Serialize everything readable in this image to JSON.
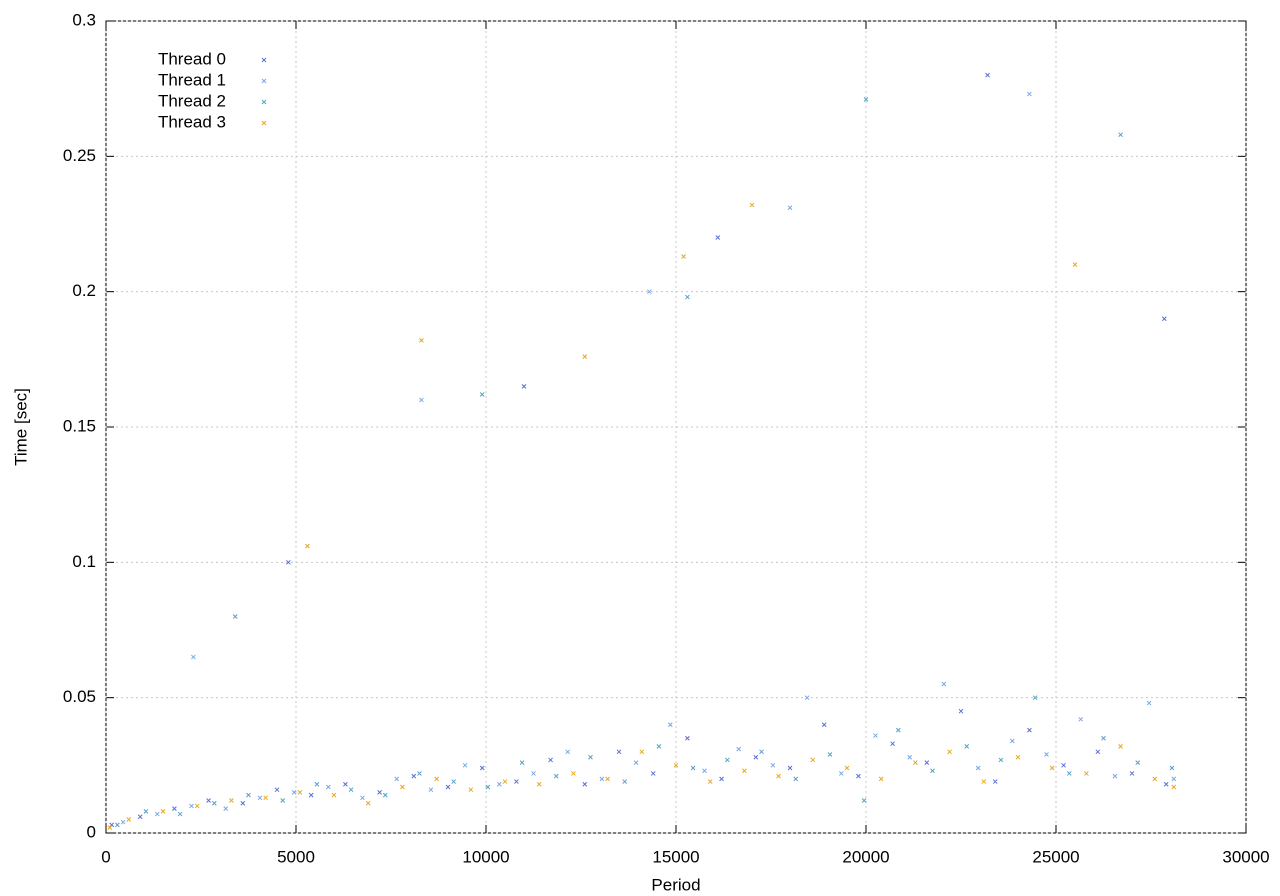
{
  "chart_data": {
    "type": "scatter",
    "xlabel": "Period",
    "ylabel": "Time [sec]",
    "xlim": [
      0,
      30000
    ],
    "xticks": [
      0,
      5000,
      10000,
      15000,
      20000,
      25000,
      30000
    ],
    "ylim": [
      0,
      0.3
    ],
    "yticks": [
      0,
      0.05,
      0.1,
      0.15,
      0.2,
      0.25,
      0.3
    ],
    "grid": true,
    "legend": "top-left",
    "series": [
      {
        "name": "Thread 0",
        "color": "#5a6fd6",
        "x": [
          150,
          900,
          1800,
          2700,
          3600,
          4500,
          5400,
          6300,
          7200,
          8100,
          9000,
          9900,
          10800,
          11700,
          12600,
          13500,
          14400,
          15300,
          16200,
          17100,
          18000,
          18900,
          19800,
          20700,
          21600,
          22500,
          23400,
          24300,
          25200,
          26100,
          27000,
          27900,
          4800,
          11000,
          16100,
          23200,
          27850
        ],
        "values": [
          0.003,
          0.006,
          0.009,
          0.012,
          0.011,
          0.016,
          0.014,
          0.018,
          0.015,
          0.021,
          0.017,
          0.024,
          0.019,
          0.027,
          0.018,
          0.03,
          0.022,
          0.035,
          0.02,
          0.028,
          0.024,
          0.04,
          0.021,
          0.033,
          0.026,
          0.045,
          0.019,
          0.038,
          0.025,
          0.03,
          0.022,
          0.018,
          0.1,
          0.165,
          0.22,
          0.28,
          0.19
        ]
      },
      {
        "name": "Thread 1",
        "color": "#7aa6e6",
        "x": [
          450,
          1350,
          2250,
          3150,
          4050,
          4950,
          5850,
          6750,
          7650,
          8550,
          9450,
          10350,
          11250,
          12150,
          13050,
          13950,
          14850,
          15750,
          16650,
          17550,
          18450,
          19350,
          20250,
          21150,
          22050,
          22950,
          23850,
          24750,
          25650,
          26550,
          27450,
          28100,
          2300,
          8300,
          14300,
          18000,
          24300
        ],
        "values": [
          0.004,
          0.007,
          0.01,
          0.009,
          0.013,
          0.015,
          0.017,
          0.013,
          0.02,
          0.016,
          0.025,
          0.018,
          0.022,
          0.03,
          0.02,
          0.026,
          0.04,
          0.023,
          0.031,
          0.025,
          0.05,
          0.022,
          0.036,
          0.028,
          0.055,
          0.024,
          0.034,
          0.029,
          0.042,
          0.021,
          0.048,
          0.02,
          0.065,
          0.16,
          0.2,
          0.231,
          0.273
        ]
      },
      {
        "name": "Thread 2",
        "color": "#56a0c8",
        "x": [
          300,
          1050,
          1950,
          2850,
          3750,
          4650,
          5550,
          6450,
          7350,
          8250,
          9150,
          10050,
          10950,
          11850,
          12750,
          13650,
          14550,
          15450,
          16350,
          17250,
          18150,
          19050,
          19950,
          20850,
          21750,
          22650,
          23550,
          24450,
          25350,
          26250,
          27150,
          28050,
          3400,
          9900,
          15300,
          20000,
          26700
        ],
        "values": [
          0.003,
          0.008,
          0.007,
          0.011,
          0.014,
          0.012,
          0.018,
          0.016,
          0.014,
          0.022,
          0.019,
          0.017,
          0.026,
          0.021,
          0.028,
          0.019,
          0.032,
          0.024,
          0.027,
          0.03,
          0.02,
          0.029,
          0.012,
          0.038,
          0.023,
          0.032,
          0.027,
          0.05,
          0.022,
          0.035,
          0.026,
          0.024,
          0.08,
          0.162,
          0.198,
          0.271,
          0.258
        ]
      },
      {
        "name": "Thread 3",
        "color": "#e8a820",
        "x": [
          100,
          600,
          1500,
          2400,
          3300,
          4200,
          5100,
          6000,
          6900,
          7800,
          8700,
          9600,
          10500,
          11400,
          12300,
          13200,
          14100,
          15000,
          15900,
          16800,
          17700,
          18600,
          19500,
          20400,
          21300,
          22200,
          23100,
          24000,
          24900,
          25800,
          26700,
          27600,
          28100,
          5300,
          8300,
          12600,
          15200,
          17000,
          25500
        ],
        "values": [
          0.002,
          0.005,
          0.008,
          0.01,
          0.012,
          0.013,
          0.015,
          0.014,
          0.011,
          0.017,
          0.02,
          0.016,
          0.019,
          0.018,
          0.022,
          0.02,
          0.03,
          0.025,
          0.019,
          0.023,
          0.021,
          0.027,
          0.024,
          0.02,
          0.026,
          0.03,
          0.019,
          0.028,
          0.024,
          0.022,
          0.032,
          0.02,
          0.017,
          0.106,
          0.182,
          0.176,
          0.213,
          0.232,
          0.21
        ]
      }
    ]
  }
}
